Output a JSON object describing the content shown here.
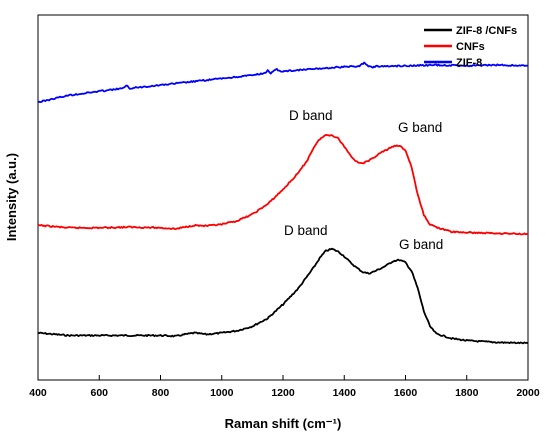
{
  "chart_data": {
    "type": "line",
    "xlabel": "Raman shift (cm⁻¹)",
    "ylabel": "Intensity (a.u.)",
    "xlim": [
      400,
      2000
    ],
    "ylim": [
      0,
      100
    ],
    "xticks": [
      "400",
      "600",
      "800",
      "1000",
      "1200",
      "1400",
      "1600",
      "1800",
      "2000"
    ],
    "grid": false,
    "legend_position": "top-right",
    "series": [
      {
        "name": "ZIF-8 /CNFs",
        "color": "#000000",
        "x": [
          400,
          500,
          600,
          700,
          800,
          850,
          880,
          910,
          950,
          1000,
          1050,
          1100,
          1150,
          1200,
          1250,
          1280,
          1300,
          1320,
          1340,
          1360,
          1380,
          1400,
          1420,
          1440,
          1460,
          1480,
          1500,
          1520,
          1540,
          1560,
          1580,
          1600,
          1620,
          1640,
          1660,
          1680,
          1700,
          1750,
          1800,
          1900,
          2000
        ],
        "values": [
          12.9,
          12.2,
          12.2,
          12.2,
          12.2,
          12.0,
          12.5,
          12.9,
          12.5,
          12.9,
          13.5,
          14.7,
          16.9,
          20.7,
          25.1,
          28.5,
          30.8,
          33.4,
          35.4,
          35.9,
          35.2,
          33.9,
          32.2,
          30.8,
          29.6,
          29.2,
          29.8,
          30.6,
          31.5,
          32.6,
          32.9,
          32.2,
          29.8,
          25.1,
          18.8,
          14.7,
          12.7,
          11.4,
          10.8,
          10.3,
          10.1
        ]
      },
      {
        "name": "CNFs",
        "color": "#ff0000",
        "x": [
          400,
          500,
          600,
          700,
          800,
          850,
          880,
          910,
          950,
          1000,
          1050,
          1100,
          1150,
          1200,
          1250,
          1280,
          1300,
          1320,
          1340,
          1360,
          1380,
          1400,
          1420,
          1440,
          1460,
          1480,
          1500,
          1520,
          1540,
          1560,
          1580,
          1600,
          1620,
          1640,
          1660,
          1680,
          1700,
          1750,
          1800,
          1900,
          2000
        ],
        "values": [
          42.4,
          41.7,
          41.7,
          41.9,
          41.7,
          41.4,
          41.9,
          42.4,
          42.2,
          42.6,
          43.6,
          45.4,
          48.2,
          52.2,
          56.7,
          60.3,
          63.7,
          66.0,
          67.1,
          67.1,
          66.2,
          64.0,
          61.6,
          59.8,
          59.4,
          60.0,
          61.2,
          62.3,
          63.1,
          64.0,
          64.2,
          62.9,
          58.3,
          50.7,
          45.2,
          42.6,
          41.9,
          40.6,
          40.4,
          40.2,
          40.0
        ]
      },
      {
        "name": "ZIF-8",
        "color": "#0000ff",
        "x": [
          400,
          500,
          600,
          650,
          680,
          690,
          700,
          750,
          800,
          900,
          1000,
          1100,
          1140,
          1150,
          1160,
          1170,
          1180,
          1190,
          1200,
          1300,
          1400,
          1450,
          1465,
          1475,
          1490,
          1500,
          1600,
          1700,
          1800,
          1900,
          2000
        ],
        "values": [
          76.1,
          78.0,
          79.1,
          79.6,
          80.0,
          80.6,
          79.9,
          80.4,
          80.8,
          81.7,
          82.6,
          83.5,
          84.0,
          84.9,
          84.0,
          84.6,
          85.1,
          84.6,
          84.6,
          85.2,
          85.8,
          86.0,
          87.0,
          86.1,
          85.7,
          85.9,
          86.1,
          86.3,
          86.1,
          86.3,
          86.1
        ]
      }
    ],
    "annotations": [
      "D band",
      "G band",
      "D band",
      "G band"
    ]
  }
}
